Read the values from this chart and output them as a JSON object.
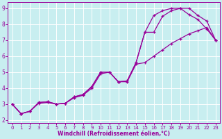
{
  "background_color": "#c8eef0",
  "line_color": "#990099",
  "grid_color": "#ffffff",
  "xlabel": "Windchill (Refroidissement éolien,°C)",
  "ylabel": "",
  "xlim": [
    -0.5,
    23.5
  ],
  "ylim": [
    1.8,
    9.4
  ],
  "xticks": [
    0,
    1,
    2,
    3,
    4,
    5,
    6,
    7,
    8,
    9,
    10,
    11,
    12,
    13,
    14,
    15,
    16,
    17,
    18,
    19,
    20,
    21,
    22,
    23
  ],
  "yticks": [
    2,
    3,
    4,
    5,
    6,
    7,
    8,
    9
  ],
  "line1_x": [
    0,
    1,
    2,
    3,
    4,
    5,
    6,
    7,
    8,
    9,
    10,
    11,
    12,
    13,
    14,
    15,
    16,
    17,
    18,
    19,
    20,
    21,
    22,
    23
  ],
  "line1_y": [
    3.0,
    2.4,
    2.55,
    3.1,
    3.15,
    3.0,
    3.05,
    3.45,
    3.6,
    4.1,
    5.0,
    5.0,
    4.4,
    4.45,
    5.6,
    7.5,
    8.55,
    8.85,
    9.0,
    9.0,
    9.0,
    8.55,
    8.2,
    7.0
  ],
  "line2_x": [
    0,
    1,
    2,
    3,
    4,
    5,
    6,
    7,
    8,
    9,
    10,
    11,
    12,
    13,
    14,
    15,
    16,
    17,
    18,
    19,
    20,
    21,
    22,
    23
  ],
  "line2_y": [
    3.0,
    2.4,
    2.55,
    3.1,
    3.15,
    3.0,
    3.05,
    3.45,
    3.6,
    4.1,
    5.0,
    5.0,
    4.4,
    4.45,
    5.6,
    7.5,
    7.5,
    8.5,
    8.85,
    9.0,
    8.6,
    8.3,
    7.7,
    7.0
  ],
  "line3_x": [
    0,
    1,
    2,
    3,
    4,
    5,
    6,
    7,
    8,
    9,
    10,
    11,
    12,
    13,
    14,
    15,
    16,
    17,
    18,
    19,
    20,
    21,
    22,
    23
  ],
  "line3_y": [
    3.0,
    2.4,
    2.55,
    3.05,
    3.1,
    3.0,
    3.05,
    3.4,
    3.55,
    4.0,
    4.9,
    5.0,
    4.4,
    4.4,
    5.5,
    5.6,
    6.0,
    6.4,
    6.8,
    7.1,
    7.4,
    7.6,
    7.8,
    7.0
  ]
}
